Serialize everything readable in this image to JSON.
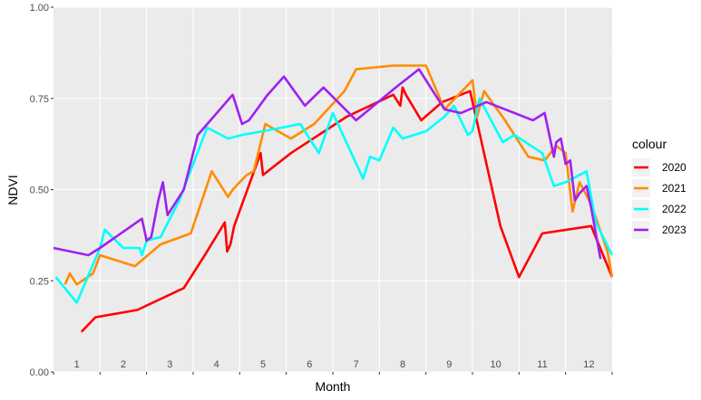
{
  "chart_data": {
    "type": "line",
    "title": "",
    "xlabel": "Month",
    "ylabel": "NDVI",
    "ylim": [
      0,
      1
    ],
    "xlim": [
      0,
      12
    ],
    "yticks": [
      "0.00",
      "0.25",
      "0.50",
      "0.75",
      "1.00"
    ],
    "yticks_values": [
      0,
      0.25,
      0.5,
      0.75,
      1.0
    ],
    "month_labels": [
      "1",
      "2",
      "3",
      "4",
      "5",
      "6",
      "7",
      "8",
      "9",
      "10",
      "11",
      "12"
    ],
    "legend_title": "colour",
    "legend_position": "right",
    "grid": true,
    "series": [
      {
        "name": "2020",
        "color": "#ff0000",
        "x": [
          0.6,
          0.9,
          1.8,
          2.8,
          3.25,
          3.68,
          3.73,
          3.8,
          3.88,
          4.45,
          4.5,
          5.1,
          6.3,
          7.3,
          7.45,
          7.5,
          7.57,
          7.9,
          8.35,
          8.95,
          9.6,
          10.0,
          10.5,
          11.55,
          12.0
        ],
        "y": [
          0.11,
          0.15,
          0.17,
          0.23,
          0.32,
          0.41,
          0.33,
          0.35,
          0.4,
          0.6,
          0.54,
          0.6,
          0.7,
          0.76,
          0.73,
          0.78,
          0.76,
          0.69,
          0.74,
          0.77,
          0.4,
          0.26,
          0.38,
          0.4,
          0.26
        ]
      },
      {
        "name": "2021",
        "color": "#ff8c00",
        "x": [
          0.25,
          0.35,
          0.5,
          0.85,
          1.0,
          1.5,
          1.75,
          2.3,
          2.95,
          3.4,
          3.75,
          3.85,
          4.15,
          4.3,
          4.55,
          5.1,
          5.6,
          6.25,
          6.5,
          7.3,
          8.0,
          8.4,
          9.0,
          9.1,
          9.25,
          9.7,
          10.2,
          10.55,
          10.8,
          11.0,
          11.15,
          11.3,
          11.55,
          11.9,
          12.0
        ],
        "y": [
          0.24,
          0.27,
          0.24,
          0.27,
          0.32,
          0.3,
          0.29,
          0.35,
          0.38,
          0.55,
          0.48,
          0.5,
          0.54,
          0.55,
          0.68,
          0.64,
          0.68,
          0.77,
          0.83,
          0.84,
          0.84,
          0.72,
          0.8,
          0.7,
          0.77,
          0.69,
          0.59,
          0.58,
          0.62,
          0.6,
          0.44,
          0.52,
          0.46,
          0.33,
          0.26
        ]
      },
      {
        "name": "2022",
        "color": "#00ffff",
        "x": [
          0.05,
          0.5,
          1.0,
          1.1,
          1.5,
          1.85,
          1.9,
          2.0,
          2.3,
          2.7,
          3.3,
          3.75,
          4.05,
          4.5,
          5.3,
          5.7,
          6.0,
          6.65,
          6.8,
          7.0,
          7.3,
          7.5,
          8.0,
          8.4,
          8.6,
          8.9,
          9.0,
          9.15,
          9.65,
          9.9,
          10.5,
          10.75,
          11.0,
          11.45,
          11.65,
          12.0
        ],
        "y": [
          0.26,
          0.19,
          0.34,
          0.39,
          0.34,
          0.34,
          0.32,
          0.36,
          0.37,
          0.47,
          0.67,
          0.64,
          0.65,
          0.66,
          0.68,
          0.6,
          0.71,
          0.53,
          0.59,
          0.58,
          0.67,
          0.64,
          0.66,
          0.7,
          0.73,
          0.65,
          0.66,
          0.75,
          0.63,
          0.65,
          0.6,
          0.51,
          0.52,
          0.55,
          0.41,
          0.32
        ]
      },
      {
        "name": "2023",
        "color": "#a020f0",
        "x": [
          0.0,
          0.75,
          1.0,
          1.9,
          2.0,
          2.1,
          2.25,
          2.35,
          2.45,
          2.5,
          2.8,
          3.1,
          3.85,
          4.05,
          4.2,
          4.6,
          4.95,
          5.4,
          5.8,
          6.5,
          7.35,
          7.85,
          8.4,
          8.75,
          9.3,
          10.3,
          10.55,
          10.75,
          10.8,
          10.9,
          11.0,
          11.1,
          11.2,
          11.3,
          11.45,
          11.55,
          11.75
        ],
        "y": [
          0.34,
          0.32,
          0.34,
          0.42,
          0.36,
          0.37,
          0.47,
          0.52,
          0.43,
          0.44,
          0.5,
          0.65,
          0.76,
          0.68,
          0.69,
          0.76,
          0.81,
          0.73,
          0.78,
          0.69,
          0.78,
          0.83,
          0.72,
          0.71,
          0.74,
          0.69,
          0.71,
          0.59,
          0.63,
          0.64,
          0.57,
          0.58,
          0.47,
          0.49,
          0.51,
          0.45,
          0.31
        ]
      }
    ]
  }
}
